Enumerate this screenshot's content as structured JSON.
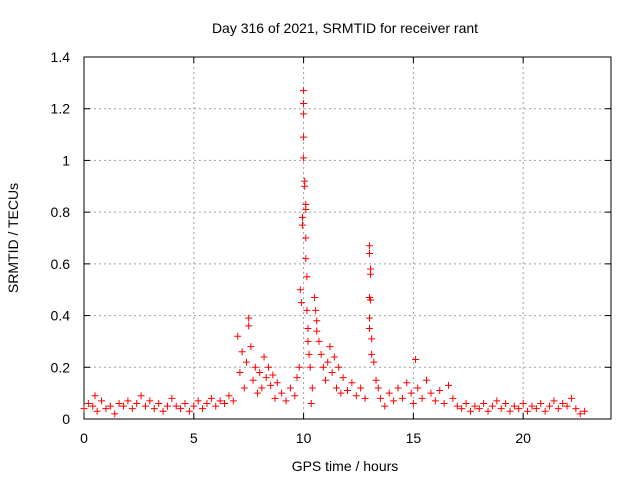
{
  "chart_data": {
    "type": "scatter",
    "title": "Day 316 of 2021, SRMTID for receiver rant",
    "xlabel": "GPS time / hours",
    "ylabel": "SRMTID / TECUs",
    "xlim": [
      0,
      24
    ],
    "ylim": [
      0,
      1.4
    ],
    "xticks": [
      "0",
      "5",
      "10",
      "15",
      "20"
    ],
    "yticks": [
      "0",
      "0.2",
      "0.4",
      "0.6",
      "0.8",
      "1",
      "1.2",
      "1.4"
    ],
    "grid": true,
    "marker": "plus",
    "color": "#ff0000",
    "series": [
      {
        "name": "SRMTID",
        "points": [
          [
            0.0,
            0.04
          ],
          [
            0.2,
            0.06
          ],
          [
            0.4,
            0.05
          ],
          [
            0.5,
            0.09
          ],
          [
            0.6,
            0.03
          ],
          [
            0.8,
            0.07
          ],
          [
            1.0,
            0.04
          ],
          [
            1.2,
            0.05
          ],
          [
            1.4,
            0.02
          ],
          [
            1.6,
            0.06
          ],
          [
            1.8,
            0.05
          ],
          [
            2.0,
            0.07
          ],
          [
            2.2,
            0.04
          ],
          [
            2.4,
            0.06
          ],
          [
            2.6,
            0.09
          ],
          [
            2.8,
            0.05
          ],
          [
            3.0,
            0.07
          ],
          [
            3.2,
            0.04
          ],
          [
            3.4,
            0.06
          ],
          [
            3.6,
            0.03
          ],
          [
            3.8,
            0.05
          ],
          [
            4.0,
            0.08
          ],
          [
            4.2,
            0.05
          ],
          [
            4.4,
            0.04
          ],
          [
            4.6,
            0.06
          ],
          [
            4.8,
            0.03
          ],
          [
            5.0,
            0.05
          ],
          [
            5.2,
            0.07
          ],
          [
            5.4,
            0.04
          ],
          [
            5.6,
            0.06
          ],
          [
            5.8,
            0.08
          ],
          [
            6.0,
            0.05
          ],
          [
            6.2,
            0.07
          ],
          [
            6.4,
            0.06
          ],
          [
            6.6,
            0.09
          ],
          [
            6.8,
            0.07
          ],
          [
            7.0,
            0.32
          ],
          [
            7.1,
            0.18
          ],
          [
            7.2,
            0.26
          ],
          [
            7.3,
            0.12
          ],
          [
            7.4,
            0.22
          ],
          [
            7.5,
            0.39
          ],
          [
            7.5,
            0.36
          ],
          [
            7.6,
            0.28
          ],
          [
            7.7,
            0.15
          ],
          [
            7.8,
            0.2
          ],
          [
            7.9,
            0.1
          ],
          [
            8.0,
            0.18
          ],
          [
            8.1,
            0.12
          ],
          [
            8.2,
            0.24
          ],
          [
            8.3,
            0.16
          ],
          [
            8.4,
            0.2
          ],
          [
            8.5,
            0.13
          ],
          [
            8.6,
            0.17
          ],
          [
            8.7,
            0.08
          ],
          [
            8.8,
            0.14
          ],
          [
            9.0,
            0.1
          ],
          [
            9.2,
            0.07
          ],
          [
            9.4,
            0.12
          ],
          [
            9.6,
            0.09
          ],
          [
            9.7,
            0.16
          ],
          [
            9.8,
            0.2
          ],
          [
            9.85,
            0.5
          ],
          [
            9.9,
            0.45
          ],
          [
            9.95,
            0.75
          ],
          [
            9.95,
            0.78
          ],
          [
            10.0,
            1.27
          ],
          [
            10.0,
            1.22
          ],
          [
            10.0,
            1.18
          ],
          [
            10.0,
            1.09
          ],
          [
            10.0,
            1.01
          ],
          [
            10.05,
            0.92
          ],
          [
            10.05,
            0.9
          ],
          [
            10.1,
            0.83
          ],
          [
            10.1,
            0.81
          ],
          [
            10.1,
            0.7
          ],
          [
            10.1,
            0.62
          ],
          [
            10.15,
            0.55
          ],
          [
            10.15,
            0.42
          ],
          [
            10.2,
            0.35
          ],
          [
            10.2,
            0.3
          ],
          [
            10.25,
            0.25
          ],
          [
            10.3,
            0.2
          ],
          [
            10.35,
            0.06
          ],
          [
            10.4,
            0.12
          ],
          [
            10.5,
            0.47
          ],
          [
            10.55,
            0.42
          ],
          [
            10.6,
            0.38
          ],
          [
            10.6,
            0.34
          ],
          [
            10.7,
            0.3
          ],
          [
            10.8,
            0.25
          ],
          [
            10.9,
            0.2
          ],
          [
            11.0,
            0.15
          ],
          [
            11.1,
            0.22
          ],
          [
            11.2,
            0.28
          ],
          [
            11.3,
            0.18
          ],
          [
            11.4,
            0.24
          ],
          [
            11.5,
            0.12
          ],
          [
            11.6,
            0.2
          ],
          [
            11.7,
            0.1
          ],
          [
            11.8,
            0.16
          ],
          [
            12.0,
            0.11
          ],
          [
            12.2,
            0.14
          ],
          [
            12.4,
            0.09
          ],
          [
            12.6,
            0.12
          ],
          [
            12.8,
            0.08
          ],
          [
            13.0,
            0.67
          ],
          [
            13.0,
            0.64
          ],
          [
            13.05,
            0.58
          ],
          [
            13.05,
            0.56
          ],
          [
            13.0,
            0.47
          ],
          [
            13.05,
            0.46
          ],
          [
            13.0,
            0.39
          ],
          [
            13.0,
            0.35
          ],
          [
            13.1,
            0.31
          ],
          [
            13.1,
            0.25
          ],
          [
            13.2,
            0.22
          ],
          [
            13.3,
            0.15
          ],
          [
            13.4,
            0.12
          ],
          [
            13.5,
            0.08
          ],
          [
            13.7,
            0.05
          ],
          [
            13.9,
            0.1
          ],
          [
            14.1,
            0.07
          ],
          [
            14.3,
            0.12
          ],
          [
            14.5,
            0.08
          ],
          [
            14.7,
            0.14
          ],
          [
            14.9,
            0.1
          ],
          [
            15.0,
            0.06
          ],
          [
            15.1,
            0.23
          ],
          [
            15.2,
            0.12
          ],
          [
            15.4,
            0.08
          ],
          [
            15.6,
            0.15
          ],
          [
            15.8,
            0.1
          ],
          [
            16.0,
            0.07
          ],
          [
            16.2,
            0.11
          ],
          [
            16.4,
            0.06
          ],
          [
            16.6,
            0.13
          ],
          [
            16.8,
            0.08
          ],
          [
            17.0,
            0.05
          ],
          [
            17.2,
            0.04
          ],
          [
            17.4,
            0.06
          ],
          [
            17.6,
            0.03
          ],
          [
            17.8,
            0.05
          ],
          [
            18.0,
            0.04
          ],
          [
            18.2,
            0.06
          ],
          [
            18.4,
            0.03
          ],
          [
            18.6,
            0.05
          ],
          [
            18.8,
            0.07
          ],
          [
            19.0,
            0.04
          ],
          [
            19.2,
            0.06
          ],
          [
            19.4,
            0.03
          ],
          [
            19.6,
            0.05
          ],
          [
            19.8,
            0.04
          ],
          [
            20.0,
            0.06
          ],
          [
            20.2,
            0.03
          ],
          [
            20.4,
            0.05
          ],
          [
            20.6,
            0.04
          ],
          [
            20.8,
            0.06
          ],
          [
            21.0,
            0.03
          ],
          [
            21.2,
            0.05
          ],
          [
            21.4,
            0.07
          ],
          [
            21.6,
            0.04
          ],
          [
            21.8,
            0.06
          ],
          [
            22.0,
            0.05
          ],
          [
            22.2,
            0.08
          ],
          [
            22.4,
            0.04
          ],
          [
            22.6,
            0.02
          ],
          [
            22.8,
            0.03
          ]
        ]
      }
    ]
  }
}
